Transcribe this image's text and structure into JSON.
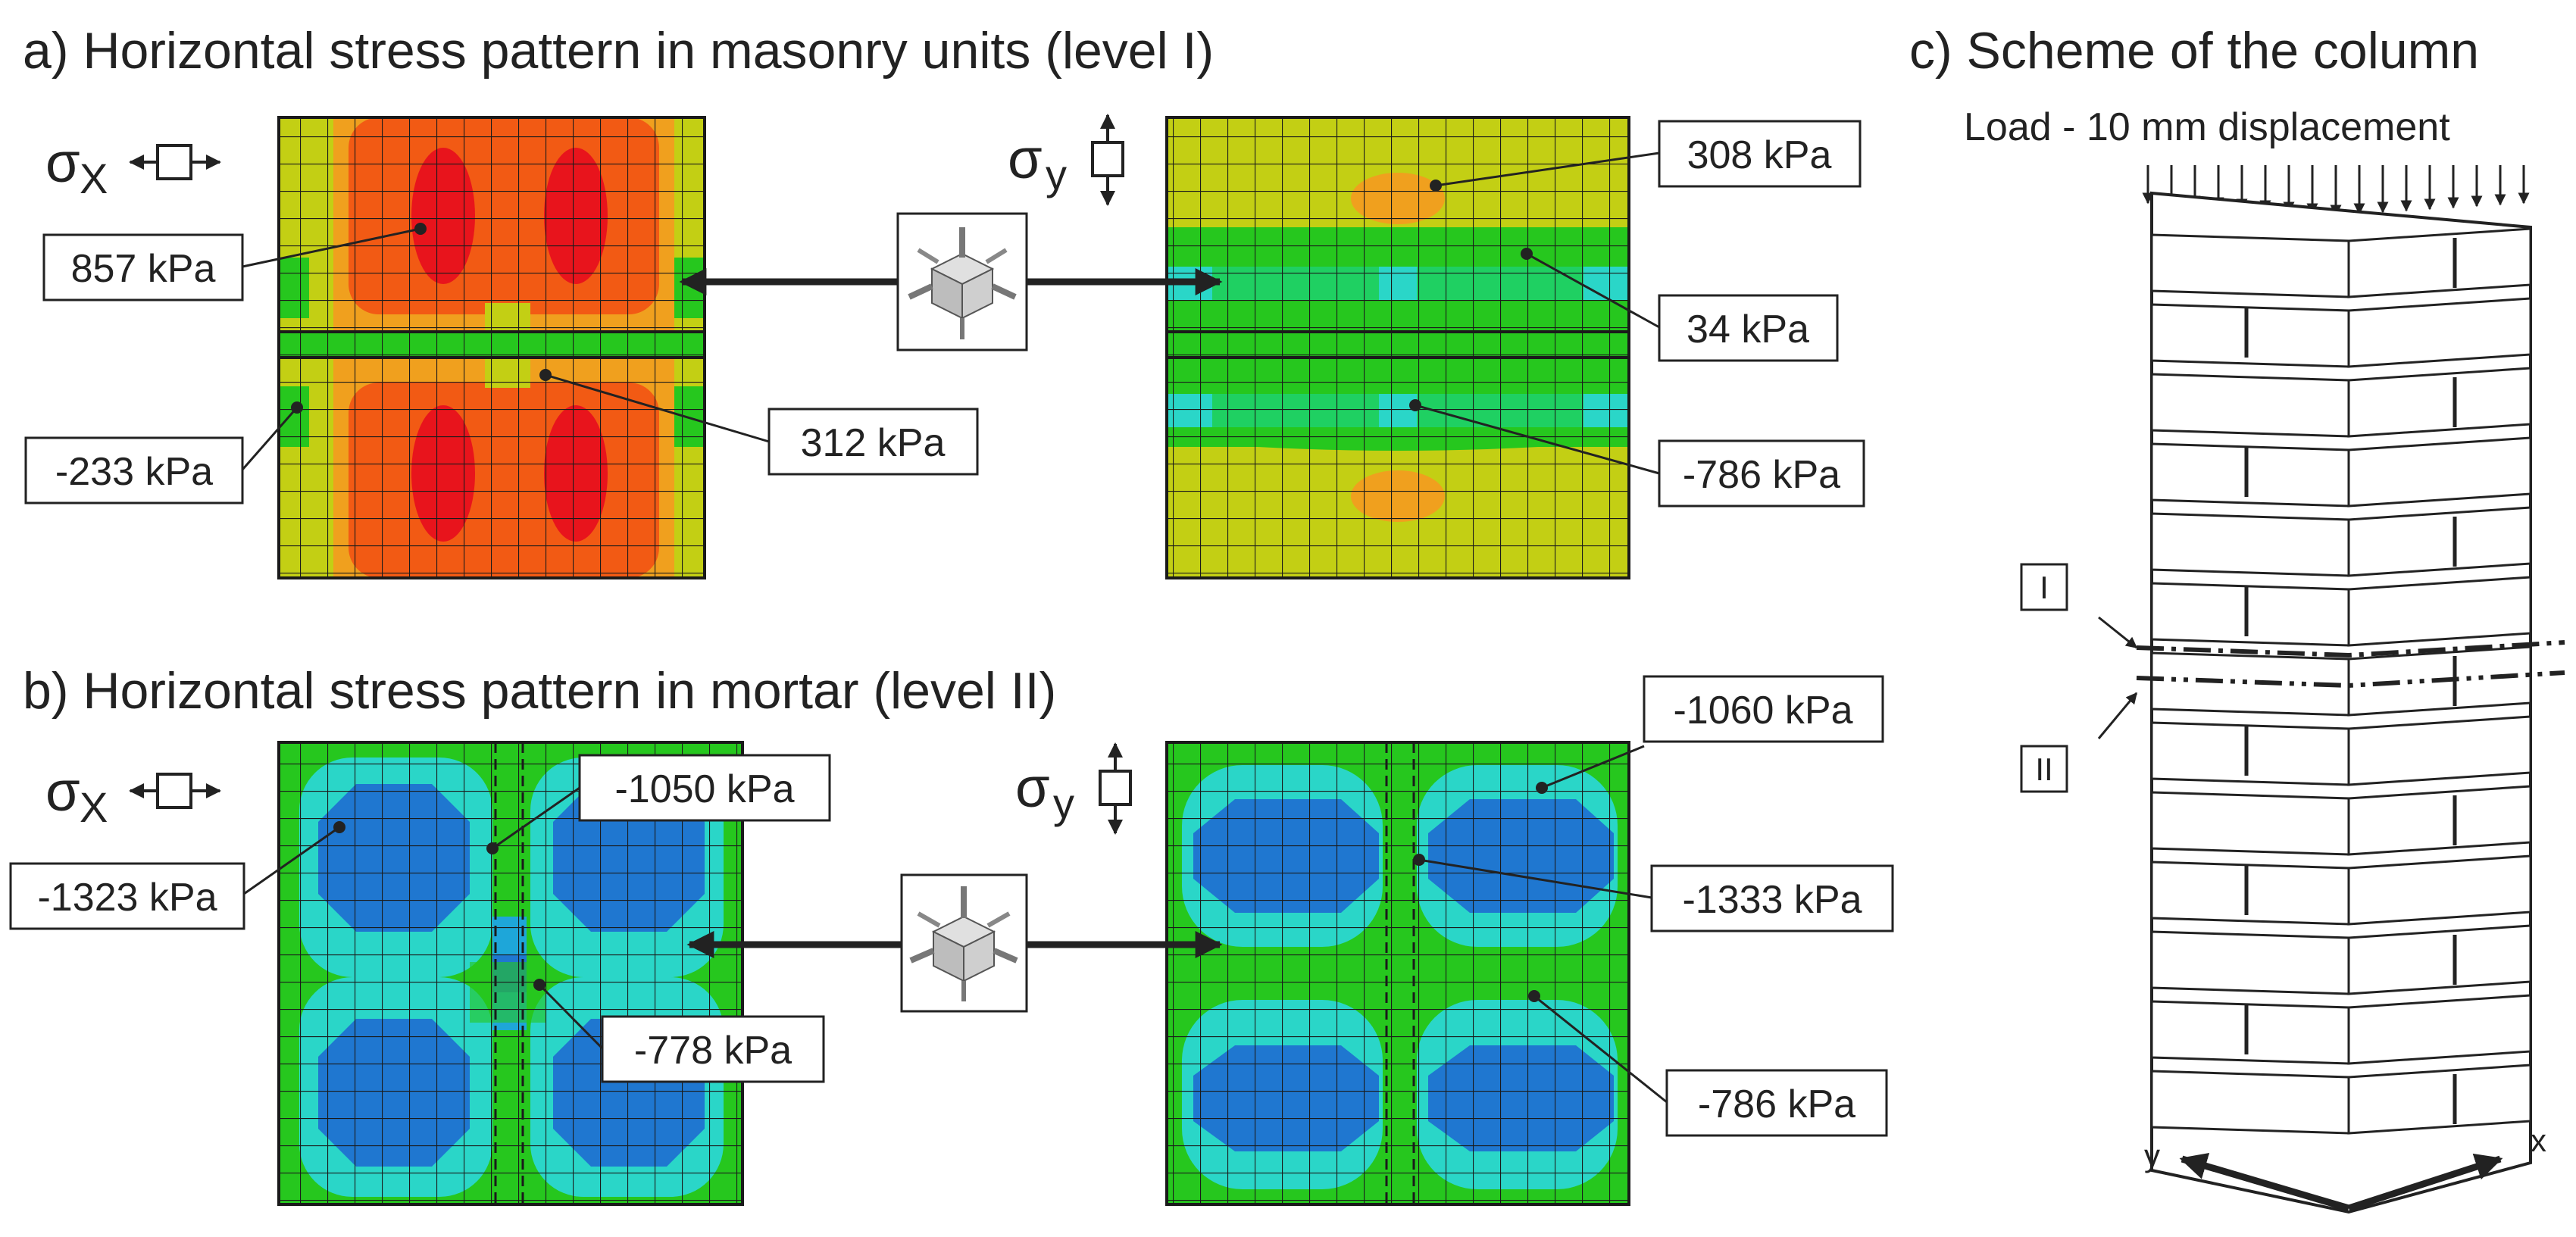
{
  "headings": {
    "a": "a) Horizontal stress pattern in masonry units (level I)",
    "b": "b) Horizontal stress pattern in mortar (level II)",
    "c": "c) Scheme of the column"
  },
  "load_label": "Load - 10 mm displacement",
  "sigma": {
    "symbol": "σ",
    "x_sub": "X",
    "y_sub": "y"
  },
  "callouts_a": {
    "sx_max": "857 kPa",
    "sx_min": "-233 kPa",
    "sx_mid": "312 kPa",
    "sy_top": "308 kPa",
    "sy_mid": "34 kPa",
    "sy_low": "-786 kPa"
  },
  "callouts_b": {
    "sx_min": "-1323 kPa",
    "sx_mid": "-1050 kPa",
    "sx_low": "-778 kPa",
    "sy_top": "-1060 kPa",
    "sy_mid": "-1333 kPa",
    "sy_low": "-786 kPa"
  },
  "levels": {
    "one": "I",
    "two": "II"
  },
  "axes": {
    "x": "x",
    "y": "y"
  },
  "colors": {
    "red": "#e8141c",
    "orange_red": "#f25a14",
    "orange": "#f0a01e",
    "yellow_green": "#c3cf14",
    "green": "#26c71e",
    "light_green": "#1fd062",
    "cyan": "#2ad6c8",
    "light_blue": "#1ea6d9",
    "blue": "#1f77d0"
  }
}
